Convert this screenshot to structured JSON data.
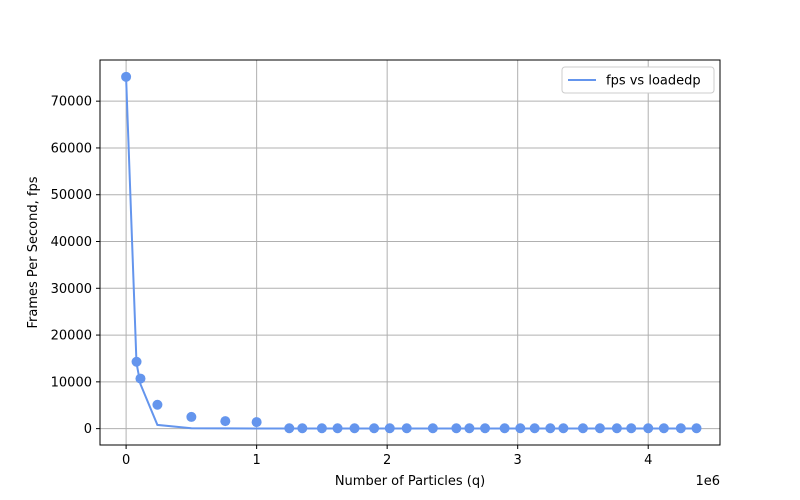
{
  "chart_data": {
    "type": "scatter",
    "title": "",
    "xlabel": "Number of Particles (q)",
    "ylabel": "Frames Per Second, fps",
    "x_offset_label": "1e6",
    "xlim": [
      -200000,
      4550000
    ],
    "ylim": [
      -3500,
      78800
    ],
    "xticks": [
      0,
      1000000,
      2000000,
      3000000,
      4000000
    ],
    "xtick_labels": [
      "0",
      "1",
      "2",
      "3",
      "4"
    ],
    "yticks": [
      0,
      10000,
      20000,
      30000,
      40000,
      50000,
      60000,
      70000
    ],
    "ytick_labels": [
      "0",
      "10000",
      "20000",
      "30000",
      "40000",
      "50000",
      "60000",
      "70000"
    ],
    "grid": true,
    "legend_position": "top-right",
    "color": "#6495ED",
    "series": [
      {
        "name": "fps vs loadedp",
        "kind": "line",
        "x": [
          0,
          80000,
          110000,
          240000,
          500000,
          760000,
          1000000,
          1250000,
          1350000,
          1500000,
          1620000,
          1750000,
          1900000,
          2020000,
          2150000,
          2350000,
          2530000,
          2630000,
          2750000,
          2900000,
          3020000,
          3130000,
          3250000,
          3350000,
          3500000,
          3630000,
          3760000,
          3870000,
          4000000,
          4120000,
          4250000,
          4370000
        ],
        "y": [
          75000,
          14000,
          9500,
          800,
          60,
          40,
          30,
          20,
          20,
          20,
          20,
          20,
          20,
          20,
          20,
          20,
          20,
          20,
          20,
          20,
          20,
          20,
          20,
          20,
          20,
          20,
          20,
          20,
          20,
          20,
          20,
          20
        ]
      },
      {
        "name": "",
        "kind": "scatter",
        "x": [
          0,
          80000,
          110000,
          240000,
          500000,
          760000,
          1000000,
          1250000,
          1350000,
          1500000,
          1620000,
          1750000,
          1900000,
          2020000,
          2150000,
          2350000,
          2530000,
          2630000,
          2750000,
          2900000,
          3020000,
          3130000,
          3250000,
          3350000,
          3500000,
          3630000,
          3760000,
          3870000,
          4000000,
          4120000,
          4250000,
          4370000
        ],
        "y": [
          75200,
          14300,
          10700,
          5100,
          2500,
          1600,
          1400,
          80,
          80,
          80,
          80,
          80,
          80,
          80,
          80,
          80,
          80,
          80,
          80,
          80,
          80,
          80,
          80,
          80,
          80,
          80,
          80,
          80,
          80,
          80,
          80,
          80
        ]
      }
    ]
  }
}
